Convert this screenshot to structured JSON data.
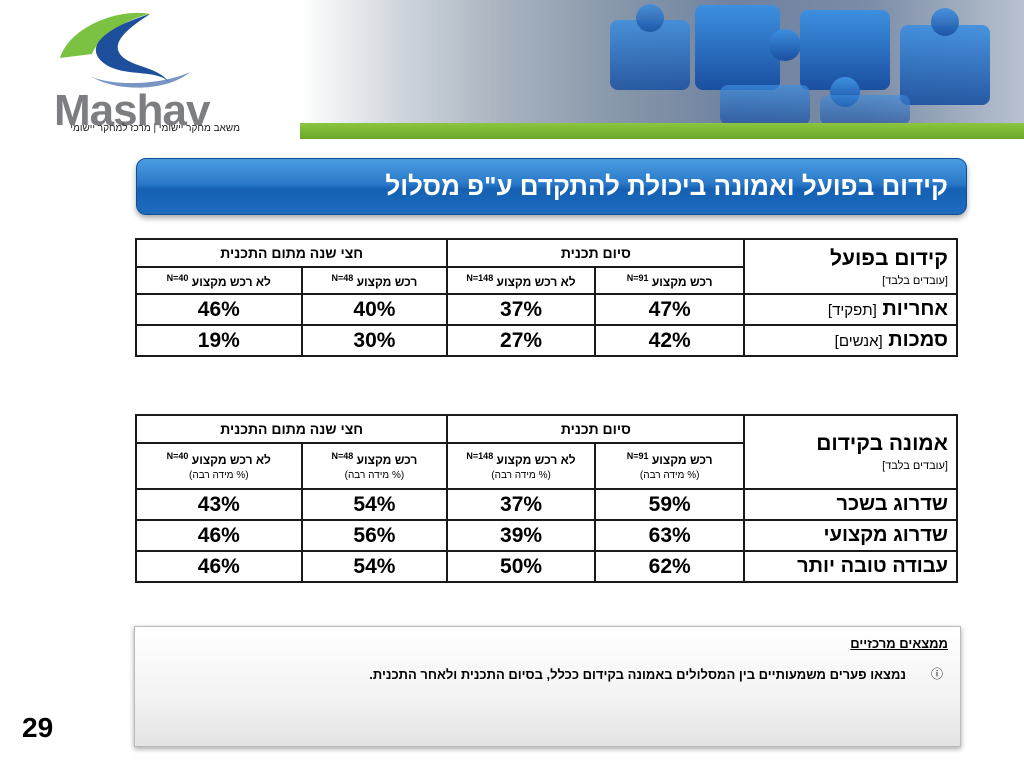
{
  "header": {
    "logo_word": "Mashav",
    "logo_subtitle": "משאב מחקר יישומי | מרכז למחקר יישומי"
  },
  "title": "קידום בפועל ואמונה ביכולת להתקדם ע\"פ מסלול",
  "table1": {
    "row_header_main": "קידום בפועל",
    "row_header_sub": "[עובדים בלבד]",
    "group_completed": "סיום תכנית",
    "group_half_year": "חצי שנה מתום התכנית",
    "col_headers": [
      {
        "label": "רכש מקצוע",
        "n": "N=91"
      },
      {
        "label": "לא רכש מקצוע",
        "n": "N=148"
      },
      {
        "label": "רכש מקצוע",
        "n": "N=48"
      },
      {
        "label": "לא רכש מקצוע",
        "n": "N=40"
      }
    ],
    "rows": [
      {
        "label": "אחריות",
        "label_sub": "[תפקיד]",
        "values": [
          "47%",
          "37%",
          "40%",
          "46%"
        ]
      },
      {
        "label": "סמכות",
        "label_sub": "[אנשים]",
        "values": [
          "42%",
          "27%",
          "30%",
          "19%"
        ]
      }
    ]
  },
  "table2": {
    "row_header_main": "אמונה בקידום",
    "row_header_sub": "[עובדים בלבד]",
    "group_completed": "סיום תכנית",
    "group_half_year": "חצי שנה מתום התכנית",
    "pct_note": "(% מידה רבה)",
    "col_headers": [
      {
        "label": "רכש מקצוע",
        "n": "N=91"
      },
      {
        "label": "לא רכש מקצוע",
        "n": "N=148"
      },
      {
        "label": "רכש מקצוע",
        "n": "N=48"
      },
      {
        "label": "לא רכש מקצוע",
        "n": "N=40"
      }
    ],
    "rows": [
      {
        "label": "שדרוג בשכר",
        "values": [
          "59%",
          "37%",
          "54%",
          "43%"
        ]
      },
      {
        "label": "שדרוג מקצועי",
        "values": [
          "63%",
          "39%",
          "56%",
          "46%"
        ]
      },
      {
        "label": "עבודה טובה יותר",
        "values": [
          "62%",
          "50%",
          "54%",
          "46%"
        ]
      }
    ]
  },
  "findings": {
    "title": "ממצאים מרכזיים",
    "items": [
      "נמצאו פערים משמעותיים בין המסלולים באמונה בקידום ככלל, בסיום התכנית ולאחר התכנית."
    ]
  },
  "page_number": "29"
}
